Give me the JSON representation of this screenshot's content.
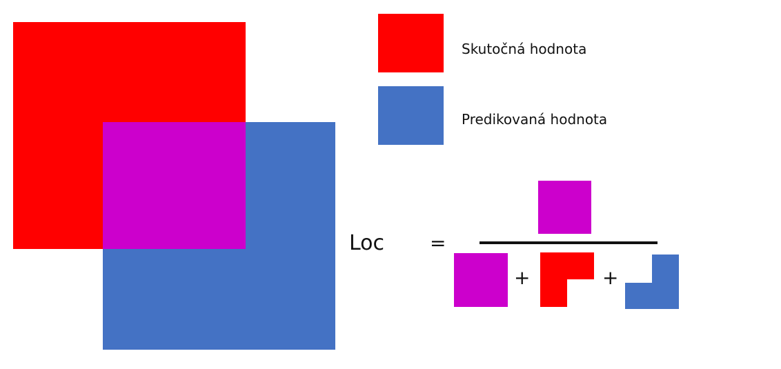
{
  "colors": {
    "actual": "#ff0000",
    "predicted": "#4472c4",
    "intersection": "#cc00cc",
    "line": "#111111"
  },
  "legend": {
    "actual_label": "Skutočná hodnota",
    "predicted_label": "Predikovaná hodnota"
  },
  "formula": {
    "lhs": "Loc",
    "equals": "=",
    "plus": "+"
  }
}
